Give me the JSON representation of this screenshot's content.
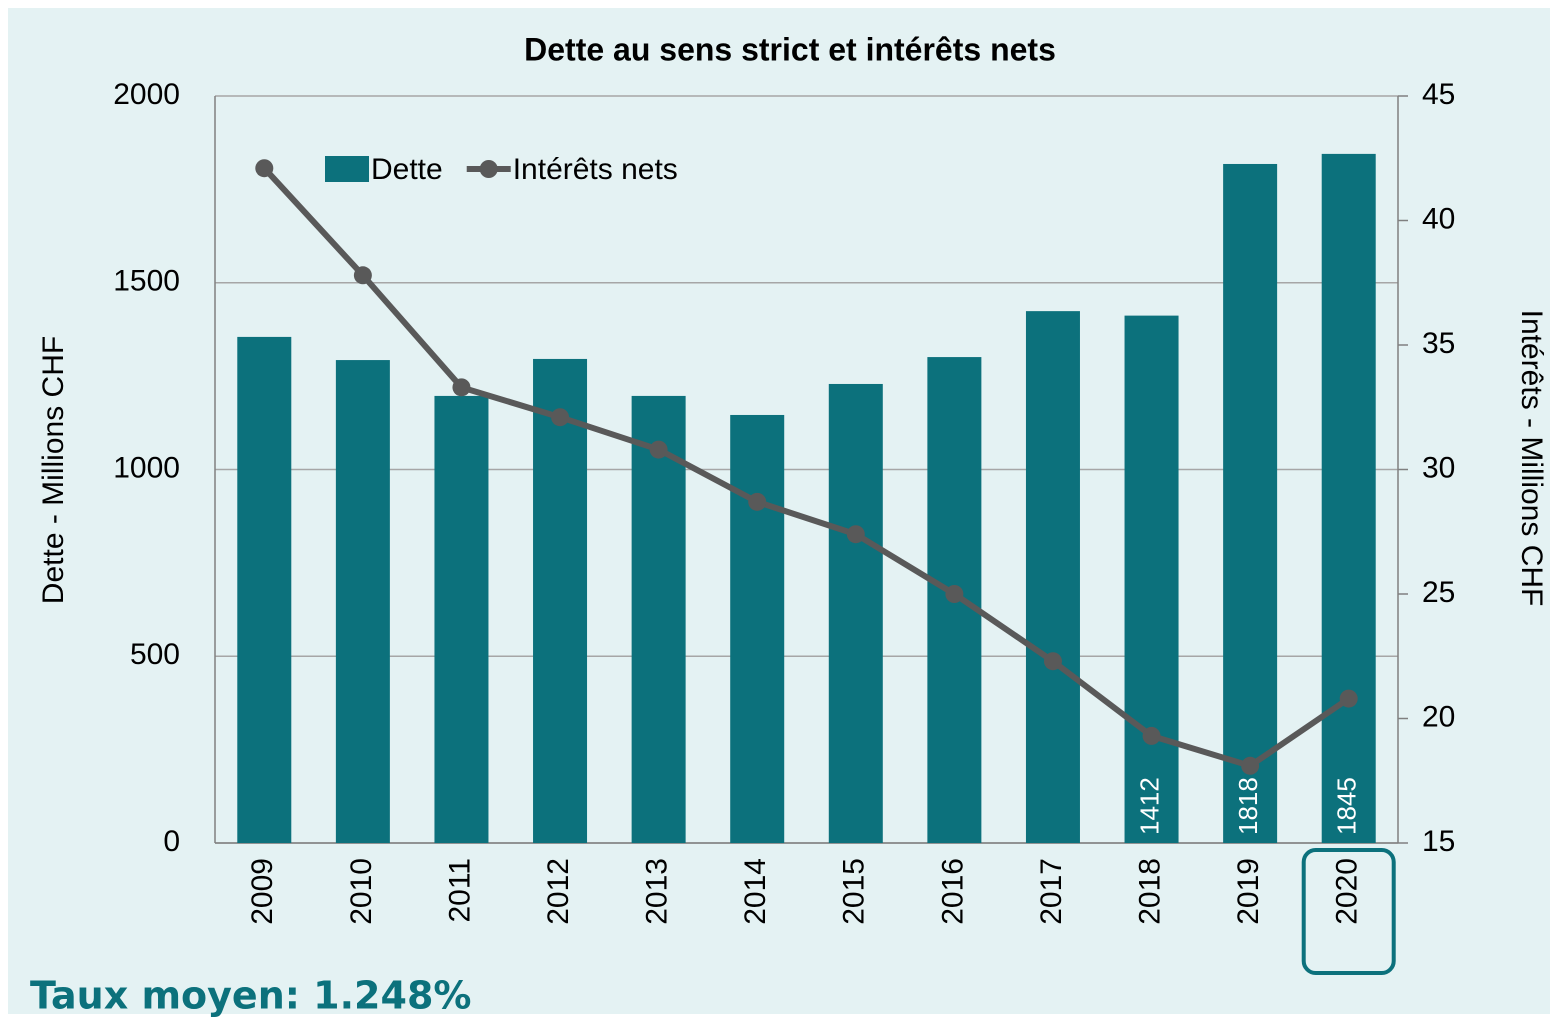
{
  "chart_data": {
    "type": "bar_line",
    "title": "Dette au sens strict et intérêts nets",
    "y_label": "Dette - Millions CHF",
    "y2_label": "Intérêts - Millions CHF",
    "annotation": "Taux moyen: 1.248%",
    "categories": [
      "2009",
      "2010",
      "2011",
      "2012",
      "2013",
      "2014",
      "2015",
      "2016",
      "2017",
      "2018",
      "2019",
      "2020"
    ],
    "series": [
      {
        "name": "Dette",
        "type": "bar",
        "color": "#0c717c",
        "values": [
          1355,
          1293,
          1197,
          1296,
          1197,
          1146,
          1229,
          1301,
          1424,
          1412,
          1818,
          1845
        ],
        "value_labels": [
          null,
          null,
          null,
          null,
          null,
          null,
          null,
          null,
          null,
          "1412",
          "1818",
          "1845"
        ]
      },
      {
        "name": "Intérêts nets",
        "type": "line",
        "axis": "y2",
        "color": "#595959",
        "values": [
          42.1,
          37.8,
          33.3,
          32.1,
          30.8,
          28.7,
          27.4,
          25.0,
          22.3,
          19.3,
          18.1,
          20.8
        ]
      }
    ],
    "ylim": [
      0,
      2000
    ],
    "yticks": [
      0,
      500,
      1000,
      1500,
      2000
    ],
    "y2lim": [
      15,
      45
    ],
    "y2ticks": [
      15,
      20,
      25,
      30,
      35,
      40,
      45
    ],
    "grid": true,
    "legend": "top-left"
  }
}
